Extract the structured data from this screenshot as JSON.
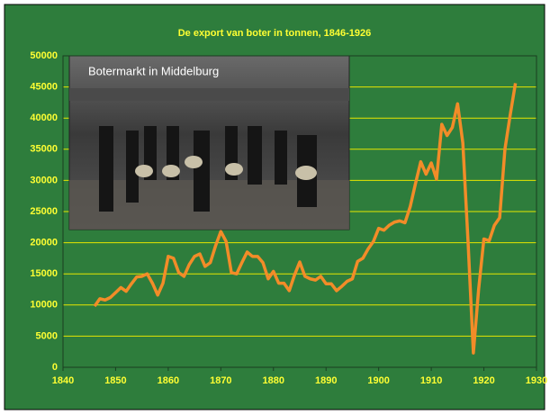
{
  "chart_data": {
    "type": "line",
    "title": "De export van boter in tonnen, 1846-1926",
    "inset_caption": "Botermarkt in Middelburg",
    "x": [
      1846,
      1847,
      1848,
      1849,
      1850,
      1851,
      1852,
      1853,
      1854,
      1855,
      1856,
      1857,
      1858,
      1859,
      1860,
      1861,
      1862,
      1863,
      1864,
      1865,
      1866,
      1867,
      1868,
      1869,
      1870,
      1871,
      1872,
      1873,
      1874,
      1875,
      1876,
      1877,
      1878,
      1879,
      1880,
      1881,
      1882,
      1883,
      1884,
      1885,
      1886,
      1887,
      1888,
      1889,
      1890,
      1891,
      1892,
      1893,
      1894,
      1895,
      1896,
      1897,
      1898,
      1899,
      1900,
      1901,
      1902,
      1903,
      1904,
      1905,
      1906,
      1907,
      1908,
      1909,
      1910,
      1911,
      1912,
      1913,
      1914,
      1915,
      1916,
      1917,
      1918,
      1919,
      1920,
      1921,
      1922,
      1923,
      1924,
      1925,
      1926
    ],
    "values": [
      9800,
      11000,
      10800,
      11200,
      12000,
      12800,
      12200,
      13400,
      14500,
      14600,
      15000,
      13500,
      11600,
      13500,
      17800,
      17500,
      15200,
      14600,
      16500,
      17800,
      18200,
      16200,
      16800,
      19500,
      21800,
      20200,
      15200,
      15000,
      16800,
      18500,
      17800,
      17800,
      16800,
      14200,
      15400,
      13500,
      13500,
      12300,
      14800,
      16900,
      14600,
      14200,
      14000,
      14600,
      13400,
      13400,
      12300,
      13000,
      13800,
      14200,
      17000,
      17500,
      19000,
      20200,
      22300,
      22000,
      22800,
      23300,
      23500,
      23200,
      25800,
      29500,
      33000,
      31000,
      32800,
      30200,
      39000,
      37200,
      38500,
      42300,
      36000,
      20000,
      2300,
      12500,
      20600,
      20300,
      22800,
      24000,
      35000,
      40500,
      45600
    ],
    "color": "#f28c28",
    "xlim": [
      1840,
      1930
    ],
    "xticks": [
      1840,
      1850,
      1860,
      1870,
      1880,
      1890,
      1900,
      1910,
      1920,
      1930
    ],
    "ylim": [
      0,
      50000
    ],
    "yticks": [
      0,
      5000,
      10000,
      15000,
      20000,
      25000,
      30000,
      35000,
      40000,
      45000,
      50000
    ],
    "grid": true
  }
}
